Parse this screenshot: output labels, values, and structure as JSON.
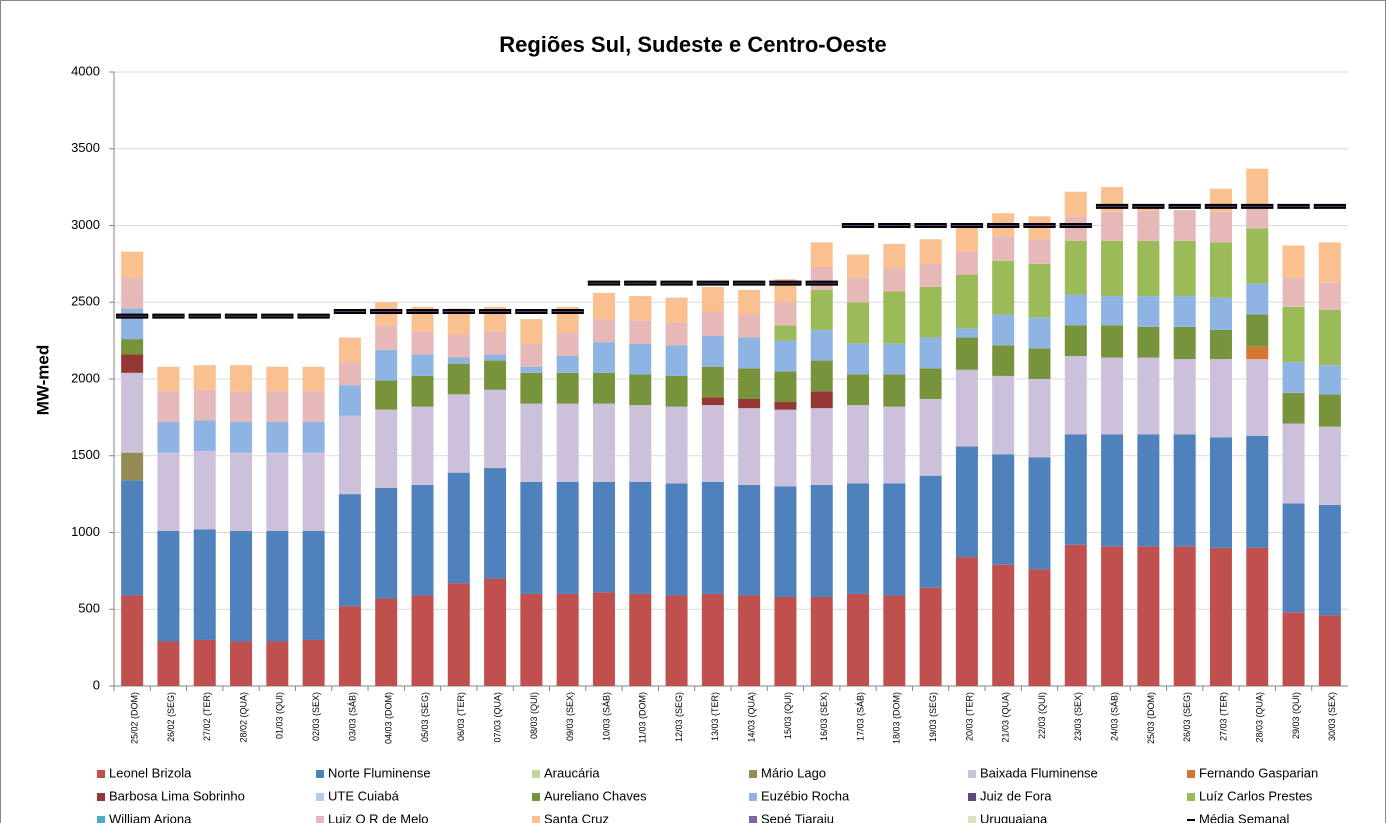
{
  "chart_data": {
    "type": "stacked-bar",
    "title": "Regiões Sul, Sudeste e Centro-Oeste",
    "y_label": "MW-med",
    "categories": [
      "25/02 (DOM)",
      "26/02 (SEG)",
      "27/02 (TER)",
      "28/02 (QUA)",
      "01/03 (QUI)",
      "02/03 (SEX)",
      "03/03 (SÁB)",
      "04/03 (DOM)",
      "05/03 (SEG)",
      "06/03 (TER)",
      "07/03 (QUA)",
      "08/03 (QUI)",
      "09/03 (SEX)",
      "10/03 (SÁB)",
      "11/03 (DOM)",
      "12/03 (SEG)",
      "13/03 (TER)",
      "14/03 (QUA)",
      "15/03 (QUI)",
      "16/03 (SEX)",
      "17/03 (SÁB)",
      "18/03 (DOM)",
      "19/03 (SEG)",
      "20/03 (TER)",
      "21/03 (QUA)",
      "22/03 (QUI)",
      "23/03 (SEX)",
      "24/03 (SÁB)",
      "25/03 (DOM)",
      "26/03 (SEG)",
      "27/03 (TER)",
      "28/03 (QUA)",
      "29/03 (QUI)",
      "30/03 (SEX)"
    ],
    "ylim": [
      0,
      4000
    ],
    "yticks": [
      0,
      500,
      1000,
      1500,
      2000,
      2500,
      3000,
      3500,
      4000
    ],
    "grid": true,
    "series": [
      {
        "name": "Leonel Brizola",
        "color": "#c0504d",
        "values": [
          590,
          290,
          300,
          290,
          290,
          300,
          520,
          570,
          590,
          670,
          700,
          600,
          600,
          610,
          600,
          590,
          600,
          590,
          580,
          580,
          600,
          590,
          640,
          840,
          790,
          760,
          920,
          910,
          910,
          910,
          900,
          900,
          480,
          460
        ]
      },
      {
        "name": "Norte Fluminense",
        "color": "#4f81bd",
        "values": [
          750,
          720,
          720,
          720,
          720,
          710,
          730,
          720,
          720,
          720,
          720,
          730,
          730,
          720,
          730,
          730,
          730,
          720,
          720,
          730,
          720,
          730,
          730,
          720,
          720,
          730,
          720,
          730,
          730,
          730,
          720,
          730,
          710,
          720
        ]
      },
      {
        "name": "Araucária",
        "color": "#c3d69b",
        "values": [
          0,
          0,
          0,
          0,
          0,
          0,
          0,
          0,
          0,
          0,
          0,
          0,
          0,
          0,
          0,
          0,
          0,
          0,
          0,
          0,
          0,
          0,
          0,
          0,
          0,
          0,
          0,
          0,
          0,
          0,
          0,
          0,
          0,
          0
        ]
      },
      {
        "name": "Mário Lago",
        "color": "#948a54",
        "values": [
          180,
          0,
          0,
          0,
          0,
          0,
          0,
          0,
          0,
          0,
          0,
          0,
          0,
          0,
          0,
          0,
          0,
          0,
          0,
          0,
          0,
          0,
          0,
          0,
          0,
          0,
          0,
          0,
          0,
          0,
          0,
          0,
          0,
          0
        ]
      },
      {
        "name": "Baixada Fluminense",
        "color": "#ccc0da",
        "values": [
          520,
          510,
          510,
          510,
          510,
          510,
          510,
          510,
          510,
          510,
          510,
          510,
          510,
          510,
          500,
          500,
          500,
          500,
          500,
          500,
          510,
          500,
          500,
          500,
          510,
          510,
          510,
          500,
          500,
          490,
          510,
          500,
          520,
          510
        ]
      },
      {
        "name": "Fernando Gasparian",
        "color": "#d7742e",
        "values": [
          0,
          0,
          0,
          0,
          0,
          0,
          0,
          0,
          0,
          0,
          0,
          0,
          0,
          0,
          0,
          0,
          0,
          0,
          0,
          0,
          0,
          0,
          0,
          0,
          0,
          0,
          0,
          0,
          0,
          0,
          0,
          80,
          0,
          0
        ]
      },
      {
        "name": "Barbosa Lima Sobrinho",
        "color": "#953735",
        "values": [
          120,
          0,
          0,
          0,
          0,
          0,
          0,
          0,
          0,
          0,
          0,
          0,
          0,
          0,
          0,
          0,
          50,
          60,
          50,
          110,
          0,
          0,
          0,
          0,
          0,
          0,
          0,
          0,
          0,
          0,
          0,
          0,
          0,
          0
        ]
      },
      {
        "name": "UTE Cuiabá",
        "color": "#b9cde5",
        "values": [
          0,
          0,
          0,
          0,
          0,
          0,
          0,
          0,
          0,
          0,
          0,
          0,
          0,
          0,
          0,
          0,
          0,
          0,
          0,
          0,
          0,
          0,
          0,
          0,
          0,
          0,
          0,
          0,
          0,
          0,
          0,
          0,
          0,
          0
        ]
      },
      {
        "name": "Aureliano Chaves",
        "color": "#77933c",
        "values": [
          100,
          0,
          0,
          0,
          0,
          0,
          0,
          190,
          200,
          200,
          190,
          200,
          200,
          200,
          200,
          200,
          200,
          200,
          200,
          200,
          200,
          210,
          200,
          210,
          200,
          200,
          200,
          210,
          200,
          210,
          190,
          210,
          200,
          210
        ]
      },
      {
        "name": "Euzébio Rocha",
        "color": "#8eb4e3",
        "values": [
          200,
          200,
          200,
          200,
          200,
          200,
          200,
          200,
          140,
          40,
          40,
          40,
          110,
          200,
          200,
          200,
          200,
          200,
          200,
          200,
          200,
          200,
          200,
          60,
          200,
          200,
          200,
          190,
          200,
          200,
          210,
          200,
          200,
          190
        ]
      },
      {
        "name": "Juiz de Fora",
        "color": "#604a7b",
        "values": [
          0,
          0,
          0,
          0,
          0,
          0,
          0,
          0,
          0,
          0,
          0,
          0,
          0,
          0,
          0,
          0,
          0,
          0,
          0,
          0,
          0,
          0,
          0,
          0,
          0,
          0,
          0,
          0,
          0,
          0,
          0,
          0,
          0,
          0
        ]
      },
      {
        "name": "Luíz Carlos Prestes",
        "color": "#9bbb59",
        "values": [
          0,
          0,
          0,
          0,
          0,
          0,
          0,
          0,
          0,
          0,
          0,
          0,
          0,
          0,
          0,
          0,
          0,
          0,
          100,
          260,
          270,
          340,
          330,
          350,
          350,
          350,
          350,
          360,
          360,
          360,
          360,
          360,
          360,
          360
        ]
      },
      {
        "name": "William Ariona",
        "color": "#4bacc6",
        "values": [
          0,
          0,
          0,
          0,
          0,
          0,
          0,
          0,
          0,
          0,
          0,
          0,
          0,
          0,
          0,
          0,
          0,
          0,
          0,
          0,
          0,
          0,
          0,
          0,
          0,
          0,
          0,
          0,
          0,
          0,
          0,
          0,
          0,
          0
        ]
      },
      {
        "name": "Luiz O R de Melo",
        "color": "#e6b9b8",
        "values": [
          200,
          200,
          200,
          200,
          200,
          200,
          150,
          160,
          150,
          150,
          150,
          150,
          150,
          150,
          150,
          150,
          160,
          150,
          150,
          150,
          160,
          150,
          150,
          150,
          160,
          160,
          160,
          190,
          200,
          200,
          200,
          150,
          190,
          180
        ]
      },
      {
        "name": "Santa Cruz",
        "color": "#fac08f",
        "values": [
          170,
          160,
          160,
          170,
          160,
          160,
          160,
          150,
          160,
          170,
          160,
          160,
          170,
          170,
          160,
          160,
          160,
          160,
          150,
          160,
          150,
          160,
          160,
          160,
          150,
          150,
          160,
          160,
          30,
          0,
          150,
          240,
          210,
          260
        ]
      },
      {
        "name": "Sepé Tiaraju",
        "color": "#8064a2",
        "values": [
          0,
          0,
          0,
          0,
          0,
          0,
          0,
          0,
          0,
          0,
          0,
          0,
          0,
          0,
          0,
          0,
          0,
          0,
          0,
          0,
          0,
          0,
          0,
          0,
          0,
          0,
          0,
          0,
          0,
          0,
          0,
          0,
          0,
          0
        ]
      },
      {
        "name": "Uruguaiana",
        "color": "#d7e4bd",
        "values": [
          0,
          0,
          0,
          0,
          0,
          0,
          0,
          0,
          0,
          0,
          0,
          0,
          0,
          0,
          0,
          0,
          0,
          0,
          0,
          0,
          0,
          0,
          0,
          0,
          0,
          0,
          0,
          0,
          0,
          0,
          0,
          0,
          0,
          0
        ]
      },
      {
        "name": "Média Semanal",
        "color": "#000000",
        "type": "dash",
        "values": [
          2410,
          2410,
          2410,
          2410,
          2410,
          2410,
          2440,
          2440,
          2440,
          2440,
          2440,
          2440,
          2440,
          2625,
          2625,
          2625,
          2625,
          2625,
          2625,
          2625,
          3000,
          3000,
          3000,
          3000,
          3000,
          3000,
          3000,
          3125,
          3125,
          3125,
          3125,
          3125,
          3125,
          3125
        ]
      }
    ]
  }
}
